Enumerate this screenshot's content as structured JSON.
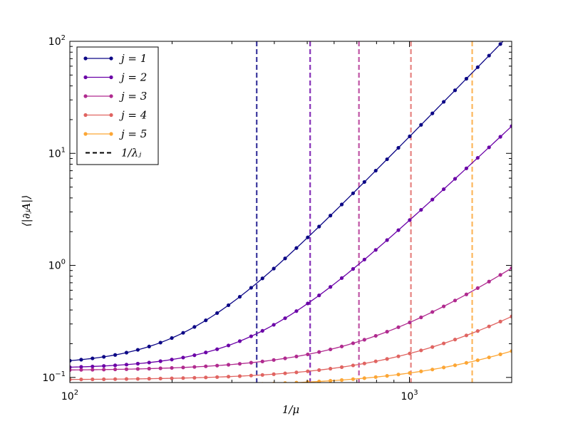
{
  "chart_data": {
    "type": "line",
    "title": "",
    "xlabel": "1/μ",
    "ylabel": "⟨|∂ⱼA|⟩",
    "xscale": "log",
    "yscale": "log",
    "xlim": [
      100,
      2000
    ],
    "ylim": [
      0.09,
      100
    ],
    "grid": false,
    "legend_position": "top-left",
    "x_tick_labels": [
      {
        "value": 100,
        "base": "10",
        "exp": "2"
      },
      {
        "value": 1000,
        "base": "10",
        "exp": "3"
      }
    ],
    "y_tick_labels": [
      {
        "value": 0.1,
        "base": "10",
        "exp": "−1"
      },
      {
        "value": 1,
        "base": "10",
        "exp": "0"
      },
      {
        "value": 10,
        "base": "10",
        "exp": "1"
      },
      {
        "value": 100,
        "base": "10",
        "exp": "2"
      }
    ],
    "series": [
      {
        "name": "j = 1",
        "color": "#0c0786",
        "a": 0.13,
        "b": 0.0111,
        "p": 3.1,
        "marker_points": 40,
        "x_end": 2000
      },
      {
        "name": "j = 2",
        "color": "#6a00a7",
        "a": 0.12,
        "b": 0.0034,
        "p": 2.85,
        "marker_points": 40,
        "x_end": 2000
      },
      {
        "name": "j = 3",
        "color": "#b02a8f",
        "a": 0.115,
        "b": 0.00154,
        "p": 2.1,
        "marker_points": 40,
        "x_end": 2000
      },
      {
        "name": "j = 4",
        "color": "#e06461",
        "a": 0.095,
        "b": 0.00086,
        "p": 1.9,
        "marker_points": 40,
        "x_end": 2000
      },
      {
        "name": "j = 5",
        "color": "#fca635",
        "a": 0.083,
        "b": 0.00047,
        "p": 1.75,
        "marker_points": 40,
        "x_end": 2000
      }
    ],
    "vertical_lines": {
      "name": "1/λⱼ",
      "style": "dashed",
      "lines": [
        {
          "x": 355,
          "color": "#0c0786"
        },
        {
          "x": 510,
          "color": "#6a00a7"
        },
        {
          "x": 710,
          "color": "#b02a8f"
        },
        {
          "x": 1010,
          "color": "#e06461"
        },
        {
          "x": 1530,
          "color": "#fca635"
        }
      ]
    },
    "legend_entries": [
      {
        "label": "j = 1",
        "kind": "marker-line",
        "color": "#0c0786"
      },
      {
        "label": "j = 2",
        "kind": "marker-line",
        "color": "#6a00a7"
      },
      {
        "label": "j = 3",
        "kind": "marker-line",
        "color": "#b02a8f"
      },
      {
        "label": "j = 4",
        "kind": "marker-line",
        "color": "#e06461"
      },
      {
        "label": "j = 5",
        "kind": "marker-line",
        "color": "#fca635"
      },
      {
        "label": "1/λⱼ",
        "kind": "dashed",
        "color": "#000000"
      }
    ]
  }
}
